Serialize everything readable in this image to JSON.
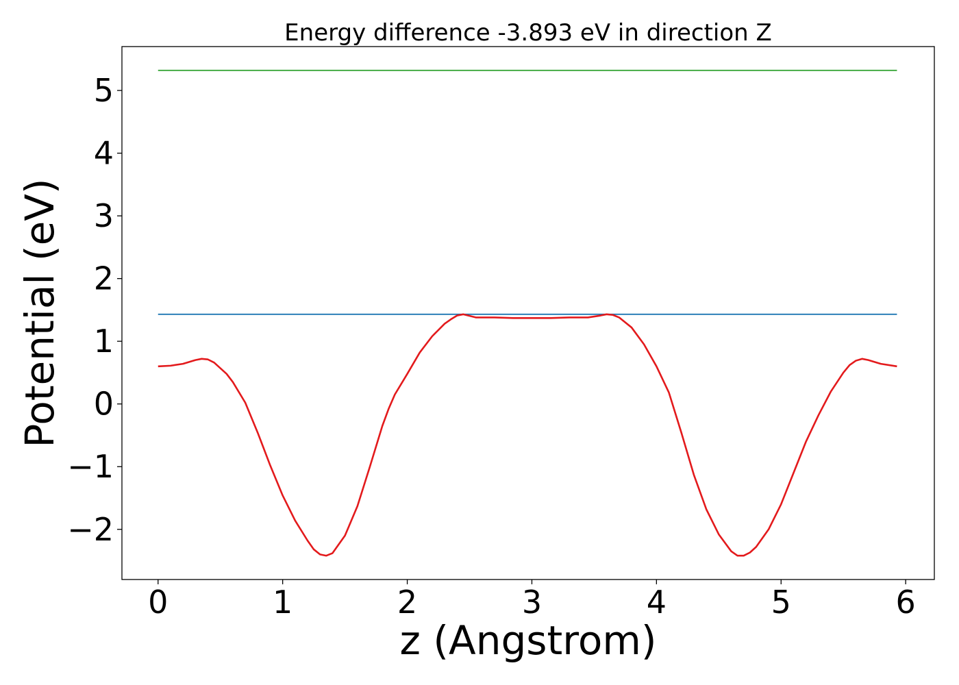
{
  "chart_data": {
    "type": "line",
    "title": "Energy difference -3.893 eV in direction Z",
    "xlabel": "z (Angstrom)",
    "ylabel": "Potential (eV)",
    "xlim": [
      -0.29,
      6.23
    ],
    "ylim": [
      -2.8,
      5.7
    ],
    "xticks": [
      0,
      1,
      2,
      3,
      4,
      5,
      6
    ],
    "xtick_labels": [
      "0",
      "1",
      "2",
      "3",
      "4",
      "5",
      "6"
    ],
    "yticks": [
      -2,
      -1,
      0,
      1,
      2,
      3,
      4,
      5
    ],
    "ytick_labels": [
      "−2",
      "−1",
      "0",
      "1",
      "2",
      "3",
      "4",
      "5"
    ],
    "grid": false,
    "series": [
      {
        "color": "#2ca02c",
        "style": "flat",
        "x": [
          0,
          5.93
        ],
        "y": [
          5.32,
          5.32
        ]
      },
      {
        "color": "#1f77b4",
        "style": "flat",
        "x": [
          0,
          5.93
        ],
        "y": [
          1.43,
          1.43
        ]
      },
      {
        "color": "#e31a1c",
        "style": "profile",
        "x": [
          0.0,
          0.1,
          0.2,
          0.3,
          0.35,
          0.4,
          0.45,
          0.5,
          0.55,
          0.6,
          0.7,
          0.8,
          0.9,
          1.0,
          1.1,
          1.2,
          1.25,
          1.3,
          1.35,
          1.4,
          1.5,
          1.6,
          1.7,
          1.8,
          1.85,
          1.9,
          2.0,
          2.1,
          2.2,
          2.3,
          2.35,
          2.4,
          2.45,
          2.55,
          2.7,
          2.85,
          3.0,
          3.15,
          3.3,
          3.45,
          3.55,
          3.6,
          3.65,
          3.7,
          3.8,
          3.9,
          4.0,
          4.1,
          4.2,
          4.3,
          4.4,
          4.5,
          4.6,
          4.65,
          4.7,
          4.75,
          4.8,
          4.9,
          5.0,
          5.1,
          5.2,
          5.3,
          5.4,
          5.5,
          5.55,
          5.6,
          5.65,
          5.7,
          5.8,
          5.93
        ],
        "y": [
          0.6,
          0.61,
          0.64,
          0.7,
          0.72,
          0.71,
          0.66,
          0.57,
          0.48,
          0.35,
          0.02,
          -0.46,
          -0.98,
          -1.46,
          -1.86,
          -2.18,
          -2.32,
          -2.4,
          -2.42,
          -2.38,
          -2.1,
          -1.63,
          -1.0,
          -0.35,
          -0.08,
          0.15,
          0.48,
          0.82,
          1.08,
          1.28,
          1.35,
          1.41,
          1.43,
          1.38,
          1.38,
          1.37,
          1.37,
          1.37,
          1.38,
          1.38,
          1.41,
          1.43,
          1.42,
          1.38,
          1.22,
          0.95,
          0.6,
          0.18,
          -0.46,
          -1.13,
          -1.68,
          -2.08,
          -2.35,
          -2.42,
          -2.42,
          -2.37,
          -2.28,
          -2.0,
          -1.6,
          -1.1,
          -0.6,
          -0.18,
          0.2,
          0.5,
          0.62,
          0.69,
          0.72,
          0.7,
          0.64,
          0.6
        ]
      }
    ]
  }
}
